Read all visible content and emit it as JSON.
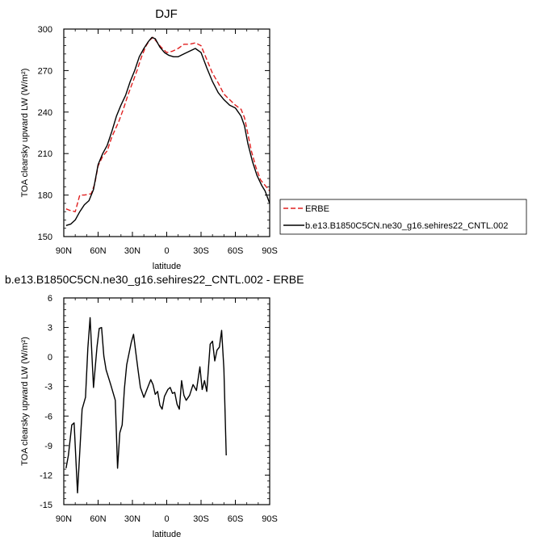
{
  "chart_data": [
    {
      "type": "line",
      "title": "DJF",
      "xlabel": "latitude",
      "ylabel": "TOA clearsky upward LW (W/m²)",
      "xlim": [
        -90,
        90
      ],
      "ylim": [
        150,
        300
      ],
      "xticks": [
        {
          "value": -90,
          "label": "90N"
        },
        {
          "value": -60,
          "label": "60N"
        },
        {
          "value": -30,
          "label": "30N"
        },
        {
          "value": 0,
          "label": "0"
        },
        {
          "value": 30,
          "label": "30S"
        },
        {
          "value": 60,
          "label": "60S"
        },
        {
          "value": 90,
          "label": "90S"
        }
      ],
      "yticks": [
        150,
        180,
        210,
        240,
        270,
        300
      ],
      "legend_position": "right",
      "series": [
        {
          "name": "ERBE",
          "color": "#e02020",
          "style": "dashed",
          "points": [
            [
              -88,
              170
            ],
            [
              -85,
              169
            ],
            [
              -80,
              168
            ],
            [
              -76,
              180
            ],
            [
              -72,
              180
            ],
            [
              -66,
              181
            ],
            [
              -63,
              188
            ],
            [
              -60,
              201
            ],
            [
              -56,
              208
            ],
            [
              -52,
              212
            ],
            [
              -48,
              222
            ],
            [
              -42,
              233
            ],
            [
              -38,
              242
            ],
            [
              -34,
              252
            ],
            [
              -30,
              261
            ],
            [
              -26,
              270
            ],
            [
              -22,
              280
            ],
            [
              -18,
              288
            ],
            [
              -15,
              292
            ],
            [
              -12,
              294
            ],
            [
              -9,
              291
            ],
            [
              -5,
              287
            ],
            [
              0,
              283
            ],
            [
              5,
              284
            ],
            [
              10,
              286
            ],
            [
              15,
              289
            ],
            [
              20,
              289
            ],
            [
              25,
              290
            ],
            [
              30,
              288
            ],
            [
              35,
              278
            ],
            [
              40,
              268
            ],
            [
              45,
              261
            ],
            [
              50,
              253
            ],
            [
              55,
              249
            ],
            [
              60,
              245
            ],
            [
              65,
              242
            ],
            [
              68,
              236
            ],
            [
              70,
              228
            ],
            [
              74,
              212
            ],
            [
              78,
              200
            ],
            [
              82,
              191
            ],
            [
              86,
              187
            ],
            [
              90,
              183
            ]
          ]
        },
        {
          "name": "b.e13.B1850C5CN.ne30_g16.sehires22_CNTL.002",
          "color": "#000000",
          "style": "solid",
          "points": [
            [
              -88,
              158
            ],
            [
              -84,
              159
            ],
            [
              -80,
              162
            ],
            [
              -76,
              168
            ],
            [
              -72,
              173
            ],
            [
              -68,
              176
            ],
            [
              -64,
              184
            ],
            [
              -60,
              202
            ],
            [
              -56,
              210
            ],
            [
              -52,
              216
            ],
            [
              -48,
              226
            ],
            [
              -44,
              237
            ],
            [
              -40,
              245
            ],
            [
              -36,
              252
            ],
            [
              -32,
              262
            ],
            [
              -28,
              270
            ],
            [
              -24,
              280
            ],
            [
              -20,
              286
            ],
            [
              -16,
              291
            ],
            [
              -13,
              294
            ],
            [
              -10,
              293
            ],
            [
              -6,
              287
            ],
            [
              -2,
              283
            ],
            [
              2,
              281
            ],
            [
              6,
              280
            ],
            [
              10,
              280
            ],
            [
              15,
              282
            ],
            [
              20,
              284
            ],
            [
              25,
              286
            ],
            [
              30,
              283
            ],
            [
              35,
              272
            ],
            [
              40,
              262
            ],
            [
              45,
              254
            ],
            [
              50,
              249
            ],
            [
              55,
              245
            ],
            [
              60,
              243
            ],
            [
              65,
              237
            ],
            [
              68,
              230
            ],
            [
              71,
              217
            ],
            [
              75,
              204
            ],
            [
              79,
              194
            ],
            [
              83,
              187
            ],
            [
              86,
              183
            ],
            [
              90,
              174
            ]
          ]
        }
      ]
    },
    {
      "type": "line",
      "title": "b.e13.B1850C5CN.ne30_g16.sehires22_CNTL.002 - ERBE",
      "xlabel": "latitude",
      "ylabel": "TOA clearsky upward LW (W/m²)",
      "xlim": [
        -90,
        90
      ],
      "ylim": [
        -15,
        6
      ],
      "xticks": [
        {
          "value": -90,
          "label": "90N"
        },
        {
          "value": -60,
          "label": "60N"
        },
        {
          "value": -30,
          "label": "30N"
        },
        {
          "value": 0,
          "label": "0"
        },
        {
          "value": 30,
          "label": "30S"
        },
        {
          "value": 60,
          "label": "60S"
        },
        {
          "value": 90,
          "label": "90S"
        }
      ],
      "yticks": [
        -15,
        -12,
        -9,
        -6,
        -3,
        0,
        3,
        6
      ],
      "series": [
        {
          "color": "#000000",
          "style": "solid",
          "points": [
            [
              -88,
              -11.3
            ],
            [
              -86,
              -10
            ],
            [
              -83,
              -6.9
            ],
            [
              -81,
              -6.7
            ],
            [
              -78,
              -13.8
            ],
            [
              -74,
              -5.3
            ],
            [
              -71,
              -4.1
            ],
            [
              -69,
              0.9
            ],
            [
              -67,
              4.0
            ],
            [
              -64,
              -3.1
            ],
            [
              -61,
              1.0
            ],
            [
              -59,
              2.9
            ],
            [
              -57,
              3.0
            ],
            [
              -55,
              0.1
            ],
            [
              -53,
              -1.3
            ],
            [
              -49,
              -2.8
            ],
            [
              -45,
              -4.4
            ],
            [
              -43,
              -11.3
            ],
            [
              -41,
              -7.7
            ],
            [
              -39,
              -6.9
            ],
            [
              -37,
              -3.2
            ],
            [
              -35,
              -0.8
            ],
            [
              -31,
              1.5
            ],
            [
              -29,
              2.3
            ],
            [
              -27,
              0.4
            ],
            [
              -25,
              -1.4
            ],
            [
              -23,
              -3.1
            ],
            [
              -20,
              -4.1
            ],
            [
              -17,
              -3.2
            ],
            [
              -14,
              -2.3
            ],
            [
              -12,
              -2.8
            ],
            [
              -10,
              -3.8
            ],
            [
              -8,
              -3.5
            ],
            [
              -6,
              -4.9
            ],
            [
              -4,
              -5.3
            ],
            [
              -2,
              -4.0
            ],
            [
              1,
              -3.3
            ],
            [
              3,
              -3.1
            ],
            [
              5,
              -3.7
            ],
            [
              7,
              -3.6
            ],
            [
              9,
              -4.8
            ],
            [
              11,
              -5.3
            ],
            [
              13,
              -2.4
            ],
            [
              15,
              -3.9
            ],
            [
              17,
              -4.4
            ],
            [
              20,
              -3.9
            ],
            [
              23,
              -2.8
            ],
            [
              26,
              -3.4
            ],
            [
              29,
              -1.0
            ],
            [
              31,
              -3.3
            ],
            [
              33,
              -2.4
            ],
            [
              35,
              -3.5
            ],
            [
              38,
              1.3
            ],
            [
              40,
              1.6
            ],
            [
              42,
              -0.4
            ],
            [
              44,
              0.7
            ],
            [
              46,
              1.0
            ],
            [
              48,
              2.7
            ],
            [
              50,
              -1.2
            ],
            [
              52,
              -10.0
            ]
          ]
        }
      ]
    }
  ]
}
